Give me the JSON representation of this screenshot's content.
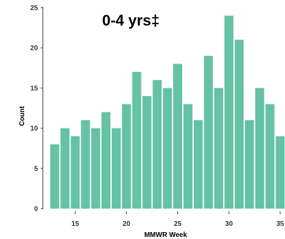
{
  "chart_data": {
    "type": "bar",
    "title": "0-4 yrs‡",
    "xlabel": "MMWR Week",
    "ylabel": "Count",
    "x": [
      13,
      14,
      15,
      16,
      17,
      18,
      19,
      20,
      21,
      22,
      23,
      24,
      25,
      26,
      27,
      28,
      29,
      30,
      31,
      32,
      33,
      34,
      35
    ],
    "values": [
      8,
      10,
      9,
      11,
      10,
      12,
      10,
      13,
      17,
      14,
      16,
      15,
      18,
      13,
      11,
      19,
      15,
      24,
      21,
      11,
      15,
      13,
      9
    ],
    "xticks": [
      15,
      20,
      25,
      30,
      35
    ],
    "yticks": [
      0,
      5,
      10,
      15,
      20,
      25
    ],
    "ylim": [
      0,
      25
    ],
    "bar_color": "#66c2a5",
    "grid": false
  }
}
